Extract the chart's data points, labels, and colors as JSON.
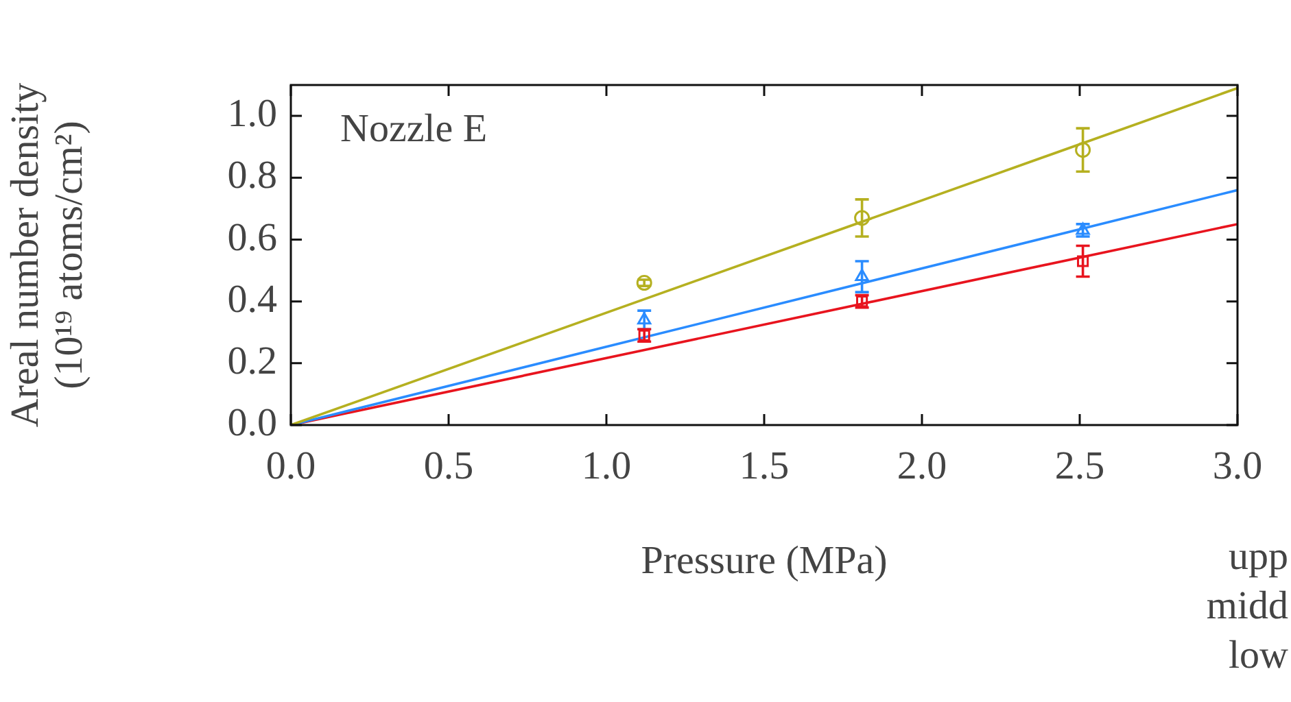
{
  "chart_data": {
    "type": "scatter",
    "xlabel": "Pressure (MPa)",
    "ylabel": [
      "Areal number density",
      "(10¹⁹ atoms/cm²)"
    ],
    "xlim": [
      0,
      3.0
    ],
    "xticks": [
      {
        "value": 0,
        "label": "0.0"
      },
      0.5,
      {
        "value": 1,
        "label": "1.0"
      },
      1.5,
      {
        "value": 2,
        "label": "2.0"
      },
      2.5,
      {
        "value": 3,
        "label": "3.0"
      }
    ],
    "ylim": [
      0,
      1.1
    ],
    "yticks": [
      {
        "value": 0,
        "label": "0.0"
      },
      0.2,
      0.4,
      0.6,
      0.8,
      {
        "value": 1,
        "label": "1.0"
      }
    ],
    "grid": false,
    "legend": false,
    "series": [
      {
        "marker": "circle",
        "color": "#b5b020",
        "x": [
          1.12,
          1.81,
          2.51
        ],
        "values": [
          0.46,
          0.67,
          0.89
        ],
        "errors": [
          0.01,
          0.06,
          0.07
        ]
      },
      {
        "marker": "triangle",
        "color": "#2a8cff",
        "x": [
          1.12,
          1.81,
          2.51
        ],
        "values": [
          0.34,
          0.48,
          0.63
        ],
        "errors": [
          0.03,
          0.05,
          0.02
        ]
      },
      {
        "marker": "square",
        "color": "#e8141e",
        "x": [
          1.12,
          1.81,
          2.51
        ],
        "values": [
          0.29,
          0.4,
          0.53
        ],
        "errors": [
          0.02,
          0.02,
          0.05
        ]
      },
      {
        "type": "line",
        "color": "#b5b020",
        "x": [
          0,
          3.0
        ],
        "values": [
          0,
          1.09
        ]
      },
      {
        "type": "line",
        "color": "#2a8cff",
        "x": [
          0,
          3.0
        ],
        "values": [
          0,
          0.76
        ]
      },
      {
        "type": "line",
        "color": "#e8141e",
        "x": [
          0,
          3.0
        ],
        "values": [
          0,
          0.65
        ]
      }
    ],
    "annotations": [
      "Nozzle E",
      "upp",
      "midd",
      "low"
    ]
  }
}
